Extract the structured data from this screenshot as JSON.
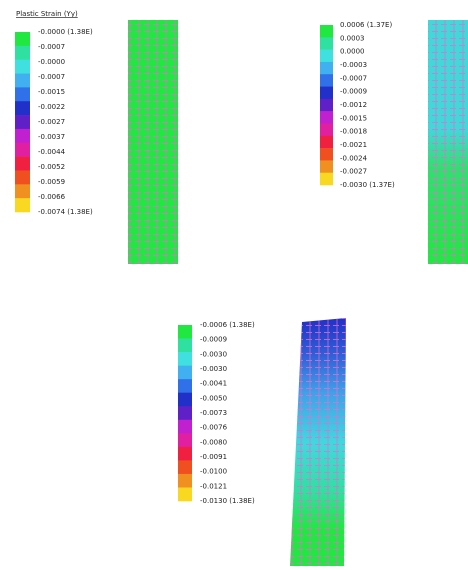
{
  "panels": [
    {
      "title": "Plastic Strain (Yy)",
      "labels": [
        "-0.0000 (1.38E)",
        "-0.0007",
        "-0.0000",
        "-0.0007",
        "-0.0015",
        "-0.0022",
        "-0.0027",
        "-0.0037",
        "-0.0044",
        "-0.0052",
        "-0.0059",
        "-0.0066",
        "-0.0074 (1.38E)"
      ]
    },
    {
      "labels": [
        "0.0006 (1.37E)",
        "0.0003",
        "0.0000",
        "-0.0003",
        "-0.0007",
        "-0.0009",
        "-0.0012",
        "-0.0015",
        "-0.0018",
        "-0.0021",
        "-0.0024",
        "-0.0027",
        "-0.0030 (1.37E)"
      ]
    },
    {
      "labels": [
        "-0.0006 (1.38E)",
        "-0.0009",
        "-0.0030",
        "-0.0030",
        "-0.0041",
        "-0.0050",
        "-0.0073",
        "-0.0076",
        "-0.0080",
        "-0.0091",
        "-0.0100",
        "-0.0121",
        "-0.0130 (1.38E)"
      ]
    }
  ]
}
